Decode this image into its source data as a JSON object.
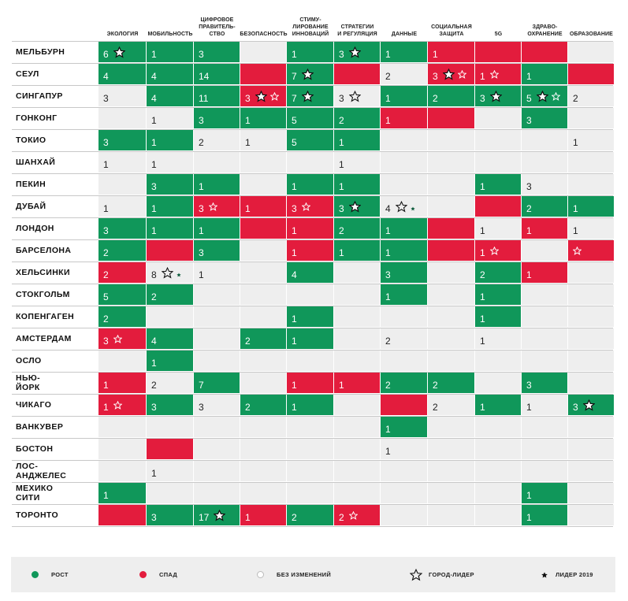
{
  "colors": {
    "growth": "#10975a",
    "decline": "#e31c3d",
    "neutral": "#eeeeee"
  },
  "chart_data": {
    "type": "table",
    "columns": [
      "ЭКОЛОГИЯ",
      "МОБИЛЬНОСТЬ",
      "ЦИФРОВОЕ\nПРАВИТЕЛЬ-\nСТВО",
      "БЕЗОПАСНОСТЬ",
      "СТИМУ-\nЛИРОВАНИЕ\nИННОВАЦИЙ",
      "СТРАТЕГИИ\nИ РЕГУЛЯЦИЯ",
      "ДАННЫЕ",
      "СОЦИАЛЬНАЯ\nЗАЩИТА",
      "5G",
      "ЗДРАВО-\nОХРАНЕНИЕ",
      "ОБРАЗОВАНИЕ"
    ],
    "rows": [
      {
        "city": "МЕЛЬБУРН",
        "cells": [
          "g|6|S",
          "g|1|",
          "g|3|",
          "n||",
          "g|1|",
          "g|3|S",
          "g|1|",
          "r|1|",
          "r||",
          "r||",
          "n||"
        ]
      },
      {
        "city": "СЕУЛ",
        "cells": [
          "g|4|",
          "g|4|",
          "g|14|",
          "r||",
          "g|7|S",
          "r||",
          "n|2|",
          "r|3|SX",
          "r|1|X",
          "g|1|",
          "r||"
        ]
      },
      {
        "city": "СИНГАПУР",
        "cells": [
          "n|3|",
          "g|4|",
          "g|11|",
          "r|3|SX",
          "g|7|S",
          "n|3|O",
          "g|1|",
          "g|2|",
          "g|3|S",
          "g|5|SX",
          "n|2|"
        ]
      },
      {
        "city": "ГОНКОНГ",
        "cells": [
          "n||",
          "n|1|",
          "g|3|",
          "g|1|",
          "g|5|",
          "g|2|",
          "r|1|",
          "r||",
          "n||",
          "g|3|",
          "n||"
        ]
      },
      {
        "city": "ТОКИО",
        "cells": [
          "g|3|",
          "g|1|",
          "n|2|",
          "n|1|",
          "g|5|",
          "g|1|",
          "n||",
          "n||",
          "n||",
          "n||",
          "n|1|"
        ]
      },
      {
        "city": "ШАНХАЙ",
        "cells": [
          "n|1|",
          "n|1|",
          "n||",
          "n||",
          "n||",
          "n|1|",
          "n||",
          "n||",
          "n||",
          "n||",
          "n||"
        ]
      },
      {
        "city": "ПЕКИН",
        "cells": [
          "n||",
          "g|3|",
          "g|1|",
          "n||",
          "g|1|",
          "g|1|",
          "n||",
          "n||",
          "g|1|",
          "n|3|",
          "n||"
        ]
      },
      {
        "city": "ДУБАЙ",
        "cells": [
          "n|1|",
          "g|1|",
          "r|3|X",
          "r|1|",
          "r|3|X",
          "g|3|S",
          "n|4|OL",
          "n||",
          "r||",
          "g|2|",
          "g|1|"
        ]
      },
      {
        "city": "ЛОНДОН",
        "cells": [
          "g|3|",
          "g|1|",
          "g|1|",
          "r||",
          "r|1|",
          "g|2|",
          "g|1|",
          "r||",
          "n|1|",
          "r|1|",
          "n|1|"
        ]
      },
      {
        "city": "БАРСЕЛОНА",
        "cells": [
          "g|2|",
          "r||",
          "g|3|",
          "n||",
          "r|1|",
          "g|1|",
          "g|1|",
          "r||",
          "r|1|X",
          "n||",
          "r||X"
        ]
      },
      {
        "city": "ХЕЛЬСИНКИ",
        "cells": [
          "r|2|",
          "n|8|OL",
          "n|1|",
          "n||",
          "g|4|",
          "n||",
          "g|3|",
          "n||",
          "g|2|",
          "r|1|",
          "n||"
        ]
      },
      {
        "city": "СТОКГОЛЬМ",
        "cells": [
          "g|5|",
          "g|2|",
          "n||",
          "n||",
          "n||",
          "n||",
          "g|1|",
          "n||",
          "g|1|",
          "n||",
          "n||"
        ]
      },
      {
        "city": "КОПЕНГАГЕН",
        "cells": [
          "g|2|",
          "n||",
          "n||",
          "n||",
          "g|1|",
          "n||",
          "n||",
          "n||",
          "g|1|",
          "n||",
          "n||"
        ]
      },
      {
        "city": "АМСТЕРДАМ",
        "cells": [
          "r|3|X",
          "g|4|",
          "n||",
          "g|2|",
          "g|1|",
          "n||",
          "n|2|",
          "n||",
          "n|1|",
          "n||",
          "n||"
        ]
      },
      {
        "city": "ОСЛО",
        "cells": [
          "n||",
          "g|1|",
          "n||",
          "n||",
          "n||",
          "n||",
          "n||",
          "n||",
          "n||",
          "n||",
          "n||"
        ]
      },
      {
        "city": "НЬЮ-ЙОРК",
        "cells": [
          "r|1|",
          "n|2|",
          "g|7|",
          "n||",
          "r|1|",
          "r|1|",
          "g|2|",
          "g|2|",
          "n||",
          "g|3|",
          "n||"
        ]
      },
      {
        "city": "ЧИКАГО",
        "cells": [
          "r|1|X",
          "g|3|",
          "n|3|",
          "g|2|",
          "g|1|",
          "n||",
          "r||",
          "n|2|",
          "g|1|",
          "n|1|",
          "g|3|S"
        ]
      },
      {
        "city": "ВАНКУВЕР",
        "cells": [
          "n||",
          "n||",
          "n||",
          "n||",
          "n||",
          "n||",
          "g|1|",
          "n||",
          "n||",
          "n||",
          "n||"
        ]
      },
      {
        "city": "БОСТОН",
        "cells": [
          "n||",
          "r||",
          "n||",
          "n||",
          "n||",
          "n||",
          "n|1|",
          "n||",
          "n||",
          "n||",
          "n||"
        ]
      },
      {
        "city": "ЛОС-АНДЖЕЛЕС",
        "cells": [
          "n||",
          "n|1|",
          "n||",
          "n||",
          "n||",
          "n||",
          "n||",
          "n||",
          "n||",
          "n||",
          "n||"
        ]
      },
      {
        "city": "МЕХИКО СИТИ",
        "cells": [
          "g|1|",
          "n||",
          "n||",
          "n||",
          "n||",
          "n||",
          "n||",
          "n||",
          "n||",
          "g|1|",
          "n||"
        ]
      },
      {
        "city": "ТОРОНТО",
        "cells": [
          "r||",
          "g|3|",
          "g|17|S",
          "r|1|",
          "g|2|",
          "r|2|X",
          "n||",
          "n||",
          "n||",
          "g|1|",
          "n||"
        ]
      }
    ]
  },
  "legend": {
    "growth": "РОСТ",
    "decline": "СПАД",
    "nochange": "БЕЗ ИЗМЕНЕНИЙ",
    "leader": "ГОРОД-ЛИДЕР",
    "leader2019": "ЛИДЕР 2019"
  }
}
